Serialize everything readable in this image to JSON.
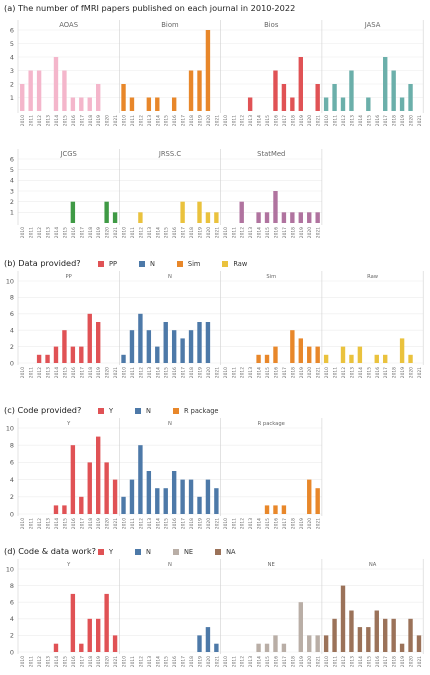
{
  "years": [
    "2010",
    "2011",
    "2012",
    "2013",
    "2014",
    "2015",
    "2016",
    "2017",
    "2018",
    "2019",
    "2020",
    "2021"
  ],
  "sections": [
    {
      "title": "(a) The number of fMRI papers published on each journal in 2010-2022",
      "legend_label": "",
      "legend": [],
      "chart_data": {
        "type": "bar",
        "ylim": [
          0,
          6
        ],
        "yticks": [
          1,
          2,
          3,
          4,
          5,
          6
        ],
        "rows": [
          {
            "panels": [
              {
                "name": "AOAS",
                "color": "#f4b6cb",
                "values": [
                  2,
                  3,
                  3,
                  0,
                  4,
                  3,
                  1,
                  1,
                  1,
                  2,
                  0,
                  0
                ]
              },
              {
                "name": "Biom",
                "color": "#e8872a",
                "values": [
                  2,
                  1,
                  0,
                  1,
                  1,
                  0,
                  1,
                  0,
                  3,
                  3,
                  6,
                  0
                ]
              },
              {
                "name": "Bios",
                "color": "#e05255",
                "values": [
                  0,
                  0,
                  0,
                  1,
                  0,
                  0,
                  3,
                  2,
                  1,
                  4,
                  0,
                  2
                ]
              },
              {
                "name": "JASA",
                "color": "#6bafaa",
                "values": [
                  1,
                  2,
                  1,
                  3,
                  0,
                  1,
                  0,
                  4,
                  3,
                  1,
                  2,
                  0
                ]
              }
            ]
          },
          {
            "panels": [
              {
                "name": "JCGS",
                "color": "#3f9a45",
                "values": [
                  0,
                  0,
                  0,
                  0,
                  0,
                  0,
                  2,
                  0,
                  0,
                  0,
                  2,
                  1
                ]
              },
              {
                "name": "JRSS.C",
                "color": "#eac23d",
                "values": [
                  0,
                  0,
                  1,
                  0,
                  0,
                  0,
                  0,
                  2,
                  0,
                  2,
                  1,
                  1
                ]
              },
              {
                "name": "StatMed",
                "color": "#b0739f",
                "values": [
                  0,
                  0,
                  2,
                  0,
                  1,
                  1,
                  3,
                  1,
                  1,
                  1,
                  1,
                  1
                ]
              }
            ]
          }
        ]
      }
    },
    {
      "title": "(b) Data provided?",
      "legend_label": "Data provided?",
      "legend": [
        {
          "label": "PP",
          "color": "#e05255"
        },
        {
          "label": "N",
          "color": "#4d79a8"
        },
        {
          "label": "Sim",
          "color": "#e8872a"
        },
        {
          "label": "Raw",
          "color": "#eac23d"
        }
      ],
      "chart_data": {
        "type": "bar",
        "ylim": [
          0,
          10
        ],
        "yticks": [
          0,
          2,
          4,
          6,
          8,
          10
        ],
        "rows": [
          {
            "panels": [
              {
                "name": "PP",
                "color": "#e05255",
                "values": [
                  0,
                  0,
                  1,
                  1,
                  2,
                  4,
                  2,
                  2,
                  6,
                  5,
                  0,
                  0
                ]
              },
              {
                "name": "N",
                "color": "#4d79a8",
                "values": [
                  1,
                  4,
                  6,
                  4,
                  2,
                  5,
                  4,
                  3,
                  4,
                  5,
                  5,
                  0
                ]
              },
              {
                "name": "Sim",
                "color": "#e8872a",
                "values": [
                  0,
                  0,
                  0,
                  0,
                  1,
                  1,
                  2,
                  0,
                  4,
                  3,
                  2,
                  2
                ]
              },
              {
                "name": "Raw",
                "color": "#eac23d",
                "values": [
                  1,
                  0,
                  2,
                  1,
                  2,
                  0,
                  1,
                  1,
                  0,
                  3,
                  1,
                  0
                ]
              }
            ]
          }
        ]
      }
    },
    {
      "title": "(c) Code provided?",
      "legend_label": "Code provided?",
      "legend": [
        {
          "label": "Y",
          "color": "#e05255"
        },
        {
          "label": "N",
          "color": "#4d79a8"
        },
        {
          "label": "R package",
          "color": "#e8872a"
        }
      ],
      "chart_data": {
        "type": "bar",
        "ylim": [
          0,
          10
        ],
        "yticks": [
          0,
          2,
          4,
          6,
          8,
          10
        ],
        "rows": [
          {
            "panels": [
              {
                "name": "Y",
                "color": "#e05255",
                "values": [
                  0,
                  0,
                  0,
                  0,
                  1,
                  1,
                  8,
                  2,
                  6,
                  9,
                  6,
                  4
                ]
              },
              {
                "name": "N",
                "color": "#4d79a8",
                "values": [
                  2,
                  4,
                  8,
                  5,
                  3,
                  3,
                  5,
                  4,
                  4,
                  2,
                  4,
                  3
                ]
              },
              {
                "name": "R package",
                "color": "#e8872a",
                "values": [
                  0,
                  0,
                  0,
                  0,
                  0,
                  1,
                  1,
                  1,
                  0,
                  0,
                  4,
                  3
                ]
              }
            ]
          }
        ]
      }
    },
    {
      "title": "(d) Code & data work?",
      "legend_label": "Code & data work?",
      "legend": [
        {
          "label": "Y",
          "color": "#e05255"
        },
        {
          "label": "N",
          "color": "#4d79a8"
        },
        {
          "label": "NE",
          "color": "#b9aea6"
        },
        {
          "label": "NA",
          "color": "#9b7259"
        }
      ],
      "chart_data": {
        "type": "bar",
        "ylim": [
          0,
          10
        ],
        "yticks": [
          0,
          2,
          4,
          6,
          8,
          10
        ],
        "rows": [
          {
            "panels": [
              {
                "name": "Y",
                "color": "#e05255",
                "values": [
                  0,
                  0,
                  0,
                  0,
                  1,
                  0,
                  7,
                  1,
                  4,
                  4,
                  7,
                  2
                ]
              },
              {
                "name": "N",
                "color": "#4d79a8",
                "values": [
                  0,
                  0,
                  0,
                  0,
                  0,
                  0,
                  0,
                  0,
                  0,
                  2,
                  3,
                  1
                ]
              },
              {
                "name": "NE",
                "color": "#b9aea6",
                "values": [
                  0,
                  0,
                  0,
                  0,
                  1,
                  1,
                  2,
                  1,
                  0,
                  6,
                  2,
                  2
                ]
              },
              {
                "name": "NA",
                "color": "#9b7259",
                "values": [
                  2,
                  4,
                  8,
                  5,
                  3,
                  3,
                  5,
                  4,
                  4,
                  1,
                  4,
                  2
                ]
              }
            ]
          }
        ]
      }
    }
  ]
}
